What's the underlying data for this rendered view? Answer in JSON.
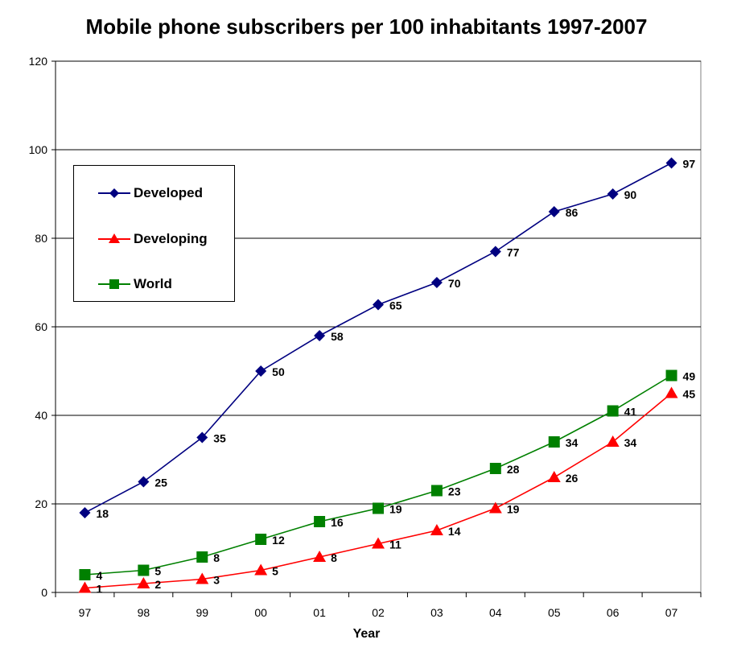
{
  "chart_data": {
    "type": "line",
    "title": "Mobile phone subscribers per 100 inhabitants 1997-2007",
    "xlabel": "Year",
    "ylabel": "",
    "categories": [
      "97",
      "98",
      "99",
      "00",
      "01",
      "02",
      "03",
      "04",
      "05",
      "06",
      "07"
    ],
    "ylim": [
      0,
      120
    ],
    "yticks": [
      0,
      20,
      40,
      60,
      80,
      100,
      120
    ],
    "grid": "horizontal",
    "legend_position": "top-left",
    "series": [
      {
        "name": "Developed",
        "values": [
          18,
          25,
          35,
          50,
          58,
          65,
          70,
          77,
          86,
          90,
          97
        ],
        "color": "#000080",
        "marker": "diamond"
      },
      {
        "name": "Developing",
        "values": [
          1,
          2,
          3,
          5,
          8,
          11,
          14,
          19,
          26,
          34,
          45
        ],
        "color": "#ff0000",
        "marker": "triangle"
      },
      {
        "name": "World",
        "values": [
          4,
          5,
          8,
          12,
          16,
          19,
          23,
          28,
          34,
          41,
          49
        ],
        "color": "#008000",
        "marker": "square"
      }
    ]
  }
}
